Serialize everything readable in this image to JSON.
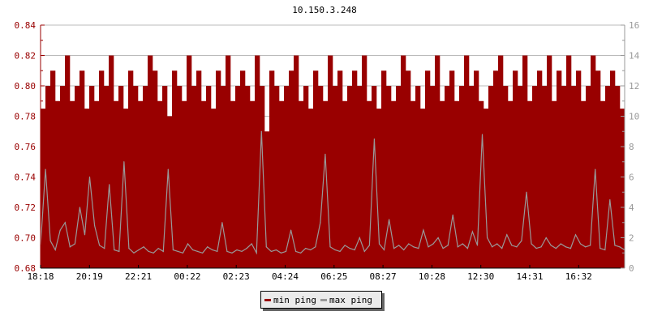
{
  "chart_data": {
    "type": "area",
    "title": "10.150.3.248",
    "x_tick_labels": [
      "18:18",
      "20:19",
      "22:21",
      "00:22",
      "02:23",
      "04:24",
      "06:25",
      "08:27",
      "10:28",
      "12:30",
      "14:31",
      "16:32"
    ],
    "y_left": {
      "range": [
        0.68,
        0.84
      ],
      "ticks": [
        "0.68",
        "0.70",
        "0.72",
        "0.74",
        "0.76",
        "0.78",
        "0.80",
        "0.82",
        "0.84"
      ]
    },
    "y_right": {
      "range": [
        0,
        16
      ],
      "ticks": [
        "0",
        "2",
        "4",
        "6",
        "8",
        "10",
        "12",
        "14",
        "16"
      ]
    },
    "grid": true,
    "legend_placement": "bottom",
    "series": [
      {
        "name": "min ping",
        "axis": "left",
        "color": "#990000",
        "values": [
          0.785,
          0.8,
          0.81,
          0.79,
          0.8,
          0.82,
          0.79,
          0.8,
          0.81,
          0.785,
          0.8,
          0.79,
          0.81,
          0.8,
          0.82,
          0.79,
          0.8,
          0.785,
          0.81,
          0.8,
          0.79,
          0.8,
          0.82,
          0.81,
          0.79,
          0.8,
          0.78,
          0.81,
          0.8,
          0.79,
          0.82,
          0.8,
          0.81,
          0.79,
          0.8,
          0.785,
          0.81,
          0.8,
          0.82,
          0.79,
          0.8,
          0.81,
          0.8,
          0.79,
          0.82,
          0.8,
          0.77,
          0.81,
          0.8,
          0.79,
          0.8,
          0.81,
          0.82,
          0.79,
          0.8,
          0.785,
          0.81,
          0.8,
          0.79,
          0.82,
          0.8,
          0.81,
          0.79,
          0.8,
          0.81,
          0.8,
          0.82,
          0.79,
          0.8,
          0.785,
          0.81,
          0.8,
          0.79,
          0.8,
          0.82,
          0.81,
          0.79,
          0.8,
          0.785,
          0.81,
          0.8,
          0.82,
          0.79,
          0.8,
          0.81,
          0.79,
          0.8,
          0.82,
          0.8,
          0.81,
          0.79,
          0.785,
          0.8,
          0.81,
          0.82,
          0.8,
          0.79,
          0.81,
          0.8,
          0.82,
          0.79,
          0.8,
          0.81,
          0.8,
          0.82,
          0.79,
          0.81,
          0.8,
          0.82,
          0.8,
          0.81,
          0.79,
          0.8,
          0.82,
          0.81,
          0.79,
          0.8,
          0.81,
          0.8,
          0.785
        ]
      },
      {
        "name": "max ping",
        "axis": "right",
        "color": "#999999",
        "values": [
          1.5,
          6.5,
          1.8,
          1.2,
          2.5,
          3.0,
          1.4,
          1.6,
          4.0,
          2.2,
          6.0,
          2.8,
          1.5,
          1.3,
          5.5,
          1.2,
          1.1,
          7.0,
          1.3,
          1.0,
          1.2,
          1.4,
          1.1,
          1.0,
          1.3,
          1.1,
          6.5,
          1.2,
          1.1,
          1.0,
          1.6,
          1.2,
          1.1,
          1.0,
          1.4,
          1.2,
          1.1,
          3.0,
          1.1,
          1.0,
          1.2,
          1.1,
          1.3,
          1.6,
          1.0,
          9.0,
          1.4,
          1.1,
          1.2,
          1.0,
          1.1,
          2.5,
          1.1,
          1.0,
          1.3,
          1.2,
          1.4,
          3.0,
          7.5,
          1.4,
          1.2,
          1.1,
          1.5,
          1.3,
          1.2,
          2.0,
          1.1,
          1.5,
          8.5,
          1.6,
          1.2,
          3.2,
          1.3,
          1.5,
          1.2,
          1.6,
          1.4,
          1.3,
          2.5,
          1.4,
          1.6,
          2.0,
          1.3,
          1.5,
          3.5,
          1.4,
          1.6,
          1.3,
          2.4,
          1.5,
          8.8,
          2.0,
          1.4,
          1.6,
          1.3,
          2.2,
          1.5,
          1.4,
          1.8,
          5.0,
          1.6,
          1.3,
          1.4,
          2.0,
          1.5,
          1.3,
          1.6,
          1.4,
          1.3,
          2.2,
          1.6,
          1.4,
          1.5,
          6.5,
          1.3,
          1.2,
          4.5,
          1.5,
          1.4,
          1.2
        ]
      }
    ]
  }
}
